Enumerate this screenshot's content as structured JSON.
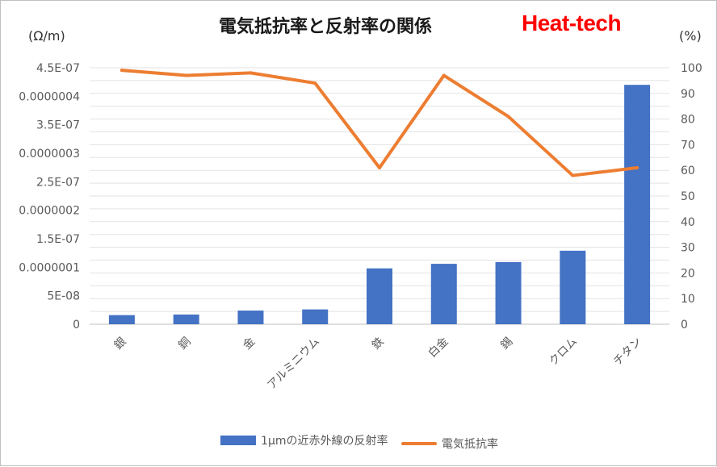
{
  "chart_data": {
    "type": "bar+line",
    "title": "電気抵抗率と反射率の関係",
    "brand": "Heat-tech",
    "left_axis_unit": "(Ω/m)",
    "right_axis_unit": "(%)",
    "categories": [
      "銀",
      "銅",
      "金",
      "アルミニウム",
      "鉄",
      "白金",
      "錫",
      "クロム",
      "チタン"
    ],
    "left_ticks": [
      "0",
      "5E-08",
      "0.0000001",
      "1.5E-07",
      "0.0000002",
      "2.5E-07",
      "0.0000003",
      "3.5E-07",
      "0.0000004",
      "4.5E-07"
    ],
    "right_ticks": [
      "0",
      "10",
      "20",
      "30",
      "40",
      "50",
      "60",
      "70",
      "80",
      "90",
      "100"
    ],
    "ylim_left": [
      0,
      4.5e-07
    ],
    "ylim_right": [
      0,
      100
    ],
    "grid": true,
    "legend_position": "bottom",
    "series": [
      {
        "name": "1μmの近赤外線の反射率",
        "type": "bar",
        "axis": "left",
        "color": "#4472c4",
        "values": [
          1.6e-08,
          1.7e-08,
          2.4e-08,
          2.6e-08,
          9.8e-08,
          1.06e-07,
          1.09e-07,
          1.29e-07,
          4.2e-07
        ]
      },
      {
        "name": "電気抵抗率",
        "type": "line",
        "axis": "right",
        "color": "#ed7d31",
        "values": [
          99,
          97,
          98,
          94,
          61,
          97,
          81,
          58,
          61
        ]
      }
    ]
  }
}
